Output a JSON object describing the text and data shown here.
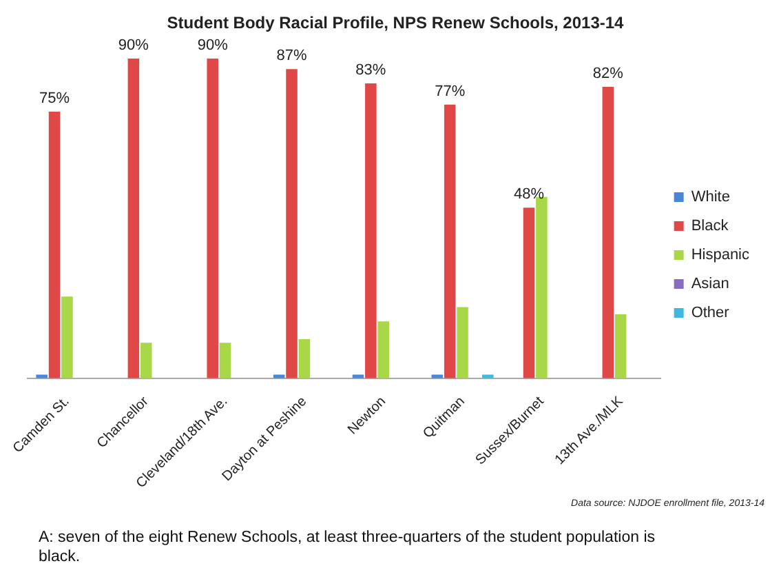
{
  "chart_data": {
    "type": "bar",
    "title": "Student Body Racial Profile, NPS Renew Schools, 2013-14",
    "categories": [
      "Camden St.",
      "Chancellor",
      "Cleveland/18th Ave.",
      "Dayton at Peshine",
      "Newton",
      "Quitman",
      "Sussex/Burnet",
      "13th Ave./MLK"
    ],
    "series": [
      {
        "name": "White",
        "color": "#4a86d8",
        "values": [
          1,
          0,
          0,
          1,
          1,
          1,
          0,
          0
        ]
      },
      {
        "name": "Black",
        "color": "#e04848",
        "values": [
          75,
          90,
          90,
          87,
          83,
          77,
          48,
          82
        ],
        "value_labels": [
          "75%",
          "90%",
          "90%",
          "87%",
          "83%",
          "77%",
          "48%",
          "82%"
        ]
      },
      {
        "name": "Hispanic",
        "color": "#a8d848",
        "values": [
          23,
          10,
          10,
          11,
          16,
          20,
          51,
          18
        ]
      },
      {
        "name": "Asian",
        "color": "#8a6cc0",
        "values": [
          0,
          0,
          0,
          0,
          0,
          0,
          0,
          0
        ]
      },
      {
        "name": "Other",
        "color": "#40b8e0",
        "values": [
          0,
          0,
          0,
          0,
          0,
          1,
          0,
          0
        ]
      }
    ],
    "legend": "right",
    "grid": false,
    "annotations": [
      "Data source: NJDOE enrollment file, 2013-14",
      "A: seven of the eight Renew Schools, at least three-quarters of the student population is black."
    ]
  }
}
